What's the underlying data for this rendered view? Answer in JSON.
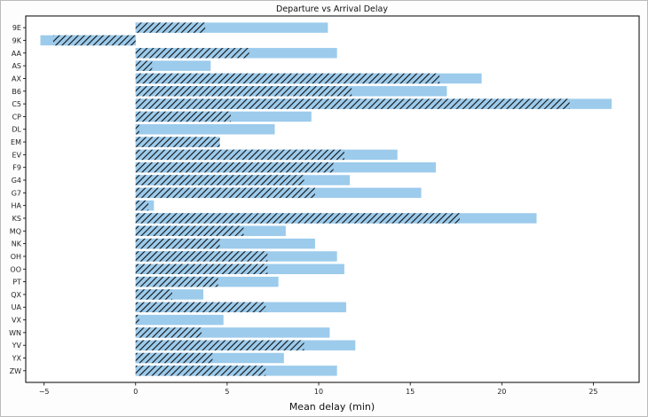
{
  "chart_data": {
    "type": "bar",
    "orientation": "horizontal",
    "title": "Departure vs Arrival Delay",
    "xlabel": "Mean delay (min)",
    "ylabel": "",
    "xlim": [
      -6.0,
      27.5
    ],
    "xticks": [
      -5,
      0,
      5,
      10,
      15,
      20,
      25
    ],
    "grid": false,
    "legend": "none",
    "categories": [
      "9E",
      "9K",
      "AA",
      "AS",
      "AX",
      "B6",
      "C5",
      "CP",
      "DL",
      "EM",
      "EV",
      "F9",
      "G4",
      "G7",
      "HA",
      "KS",
      "MQ",
      "NK",
      "OH",
      "OO",
      "PT",
      "QX",
      "UA",
      "VX",
      "WN",
      "YV",
      "YX",
      "ZW"
    ],
    "series": [
      {
        "style": "solid",
        "color": "#9ccbec",
        "values": [
          10.5,
          -5.2,
          11.0,
          4.1,
          18.9,
          17.0,
          26.0,
          9.6,
          7.6,
          4.5,
          14.3,
          16.4,
          11.7,
          15.6,
          1.0,
          21.9,
          8.2,
          9.8,
          11.0,
          11.4,
          7.8,
          3.7,
          11.5,
          4.8,
          10.6,
          12.0,
          8.1,
          11.0
        ]
      },
      {
        "style": "hatched",
        "color": "#9ccbec",
        "values": [
          3.8,
          -4.5,
          6.2,
          0.9,
          16.6,
          11.8,
          23.7,
          5.2,
          0.2,
          4.6,
          11.4,
          10.8,
          9.2,
          9.8,
          0.7,
          17.7,
          5.9,
          4.6,
          7.2,
          7.2,
          4.5,
          2.0,
          7.1,
          0.2,
          3.6,
          9.2,
          4.2,
          7.1
        ]
      }
    ]
  }
}
